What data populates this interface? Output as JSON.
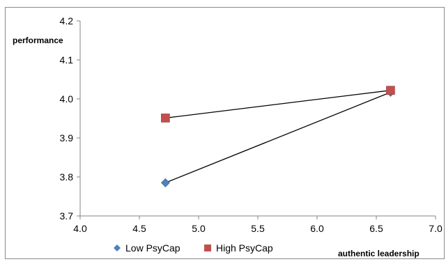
{
  "chart_data": {
    "type": "line",
    "ylabel": "performance",
    "xlabel": "authentic leadership",
    "xlim": [
      4.0,
      7.0
    ],
    "ylim": [
      3.7,
      4.2
    ],
    "x_ticks": [
      "4.0",
      "4.5",
      "5.0",
      "5.5",
      "6.0",
      "6.5",
      "7.0"
    ],
    "y_ticks": [
      "3.7",
      "3.8",
      "3.9",
      "4.0",
      "4.1",
      "4.2"
    ],
    "grid": false,
    "legend_position": "bottom",
    "series": [
      {
        "name": "Low PsyCap",
        "marker": "diamond",
        "color": "#4f81bd",
        "x": [
          4.72,
          6.62
        ],
        "y": [
          3.785,
          4.017
        ]
      },
      {
        "name": "High PsyCap",
        "marker": "square",
        "color": "#c0504d",
        "x": [
          4.72,
          6.62
        ],
        "y": [
          3.951,
          4.022
        ]
      }
    ],
    "line_color": "#000000"
  }
}
